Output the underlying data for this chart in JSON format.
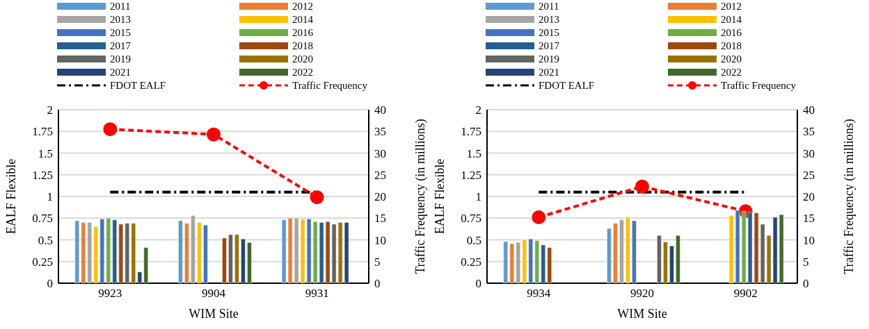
{
  "chart_data": [
    {
      "type": "bar",
      "xlabel": "WIM Site",
      "ylabel": "EALF Flexible",
      "y2label": "Traffic Frequency (in millions)",
      "categories": [
        "9923",
        "9904",
        "9931"
      ],
      "ylim": [
        0,
        2
      ],
      "yticks": [
        0,
        0.25,
        0.5,
        0.75,
        1,
        1.25,
        1.5,
        1.75,
        2
      ],
      "y2lim": [
        0,
        40
      ],
      "y2ticks": [
        0,
        5,
        10,
        15,
        20,
        25,
        30,
        35,
        40
      ],
      "grid": "y",
      "legend": "top",
      "series": [
        {
          "name": "2011",
          "color": "#5b9bd5",
          "values": [
            0.72,
            0.72,
            0.73
          ]
        },
        {
          "name": "2012",
          "color": "#ed7d31",
          "values": [
            0.7,
            0.69,
            0.75
          ]
        },
        {
          "name": "2013",
          "color": "#a5a5a5",
          "values": [
            0.7,
            0.78,
            0.75
          ]
        },
        {
          "name": "2014",
          "color": "#ffc000",
          "values": [
            0.65,
            0.7,
            0.74
          ]
        },
        {
          "name": "2015",
          "color": "#4472c4",
          "values": [
            0.74,
            0.67,
            0.74
          ]
        },
        {
          "name": "2016",
          "color": "#70ad47",
          "values": [
            0.75,
            null,
            0.71
          ]
        },
        {
          "name": "2017",
          "color": "#255e91",
          "values": [
            0.73,
            null,
            0.7
          ]
        },
        {
          "name": "2018",
          "color": "#9e480e",
          "values": [
            0.68,
            0.52,
            0.71
          ]
        },
        {
          "name": "2019",
          "color": "#636363",
          "values": [
            0.69,
            0.56,
            0.68
          ]
        },
        {
          "name": "2020",
          "color": "#997300",
          "values": [
            0.69,
            0.56,
            0.7
          ]
        },
        {
          "name": "2021",
          "color": "#264478",
          "values": [
            0.13,
            0.51,
            0.7
          ]
        },
        {
          "name": "2022",
          "color": "#43682b",
          "values": [
            0.41,
            0.47,
            null
          ]
        },
        {
          "name": "FDOT EALF",
          "type": "line",
          "color": "#000000",
          "line_style": "dashdot",
          "marker": "none",
          "values": [
            1.05,
            1.05,
            1.05
          ]
        },
        {
          "name": "Traffic Frequency",
          "type": "line",
          "axis": "y2",
          "color": "#ff0000",
          "line_style": "dashed",
          "marker": "circle",
          "values": [
            35.5,
            34.3,
            19.8
          ]
        }
      ]
    },
    {
      "type": "bar",
      "xlabel": "WIM Site",
      "ylabel": "EALF Flexible",
      "y2label": "Traffic Frequency (in millions)",
      "categories": [
        "9934",
        "9920",
        "9902"
      ],
      "ylim": [
        0,
        2
      ],
      "yticks": [
        0,
        0.25,
        0.5,
        0.75,
        1,
        1.25,
        1.5,
        1.75,
        2
      ],
      "y2lim": [
        0,
        40
      ],
      "y2ticks": [
        0,
        5,
        10,
        15,
        20,
        25,
        30,
        35,
        40
      ],
      "grid": "y",
      "legend": "top",
      "series": [
        {
          "name": "2011",
          "color": "#5b9bd5",
          "values": [
            0.48,
            0.63,
            null
          ]
        },
        {
          "name": "2012",
          "color": "#ed7d31",
          "values": [
            0.455,
            0.69,
            null
          ]
        },
        {
          "name": "2013",
          "color": "#a5a5a5",
          "values": [
            0.47,
            0.73,
            null
          ]
        },
        {
          "name": "2014",
          "color": "#ffc000",
          "values": [
            0.5,
            0.76,
            0.78
          ]
        },
        {
          "name": "2015",
          "color": "#4472c4",
          "values": [
            0.51,
            0.72,
            0.84
          ]
        },
        {
          "name": "2016",
          "color": "#70ad47",
          "values": [
            0.49,
            null,
            0.83
          ]
        },
        {
          "name": "2017",
          "color": "#255e91",
          "values": [
            0.44,
            null,
            0.82
          ]
        },
        {
          "name": "2018",
          "color": "#9e480e",
          "values": [
            0.41,
            null,
            0.81
          ]
        },
        {
          "name": "2019",
          "color": "#636363",
          "values": [
            null,
            0.55,
            0.68
          ]
        },
        {
          "name": "2020",
          "color": "#997300",
          "values": [
            null,
            0.475,
            0.55
          ]
        },
        {
          "name": "2021",
          "color": "#264478",
          "values": [
            null,
            0.43,
            0.76
          ]
        },
        {
          "name": "2022",
          "color": "#43682b",
          "values": [
            null,
            0.55,
            0.79
          ]
        },
        {
          "name": "FDOT EALF",
          "type": "line",
          "color": "#000000",
          "line_style": "dashdot",
          "marker": "none",
          "values": [
            1.05,
            1.05,
            1.05
          ]
        },
        {
          "name": "Traffic Frequency",
          "type": "line",
          "axis": "y2",
          "color": "#ff0000",
          "line_style": "dashed",
          "marker": "circle",
          "values": [
            15.2,
            22.3,
            16.6
          ]
        }
      ]
    }
  ]
}
